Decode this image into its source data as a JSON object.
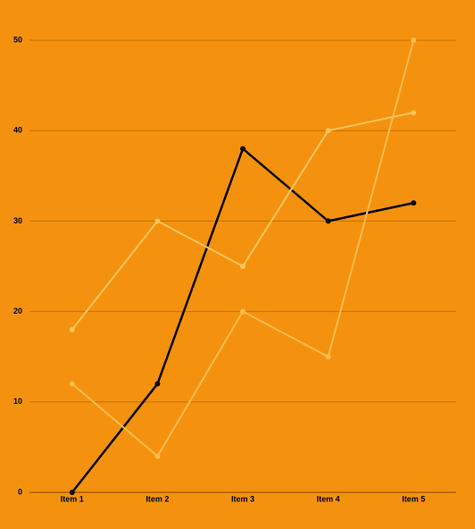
{
  "chart_data": {
    "type": "line",
    "categories": [
      "Item 1",
      "Item 2",
      "Item 3",
      "Item 4",
      "Item 5"
    ],
    "series": [
      {
        "color": "#000000",
        "values": [
          0,
          12,
          38,
          30,
          32
        ]
      },
      {
        "color": "#fcc45c",
        "values": [
          18,
          30,
          25,
          40,
          42
        ]
      },
      {
        "color": "#fdbb4e",
        "values": [
          12,
          4,
          20,
          15,
          50
        ]
      }
    ],
    "ylim": [
      0,
      50
    ],
    "yticks": [
      0,
      10,
      20,
      30,
      40,
      50
    ],
    "grid": true
  }
}
